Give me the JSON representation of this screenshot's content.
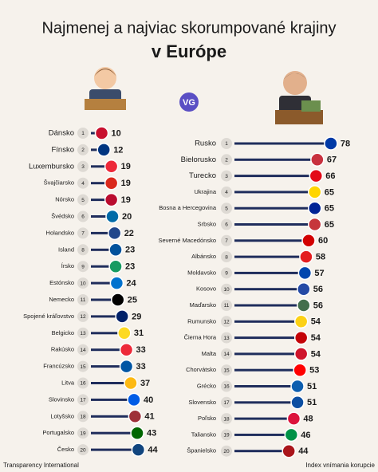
{
  "header": {
    "title_lines": [
      "Najmenej a najviac skorumpované krajiny",
      "v Európe"
    ],
    "logo": "VG"
  },
  "footer": {
    "left": "Transparency International",
    "right": "Index vnímania korupcie"
  },
  "chart_data": [
    {
      "type": "bar",
      "categories": [
        "Dánsko",
        "Fínsko",
        "Luxembursko",
        "Švajčiarsko",
        "Nórsko",
        "Švédsko",
        "Holandsko",
        "Island",
        "Írsko",
        "Estónsko",
        "Nemecko",
        "Spojené kráľovstvo",
        "Belgicko",
        "Rakúsko",
        "Francúzsko",
        "Litva",
        "Slovinsko",
        "Lotyšsko",
        "Portugalsko",
        "Česko"
      ],
      "ranks": [
        1,
        2,
        3,
        4,
        5,
        6,
        7,
        8,
        9,
        10,
        11,
        12,
        13,
        14,
        15,
        16,
        17,
        18,
        19,
        20
      ],
      "values": [
        10,
        12,
        19,
        19,
        19,
        20,
        22,
        23,
        23,
        24,
        25,
        29,
        31,
        33,
        33,
        37,
        40,
        41,
        43,
        44
      ],
      "colors": [
        "#c8102e",
        "#003580",
        "#ed2939",
        "#da291c",
        "#ba0c2f",
        "#006aa7",
        "#21468b",
        "#02529c",
        "#169b62",
        "#0072ce",
        "#000000",
        "#012169",
        "#fdda24",
        "#ed2939",
        "#0055a4",
        "#fdb913",
        "#005ce6",
        "#9e3039",
        "#006600",
        "#11457e"
      ]
    },
    {
      "type": "bar",
      "categories": [
        "Rusko",
        "Bielorusko",
        "Turecko",
        "Ukrajina",
        "Bosna a Hercegovina",
        "Srbsko",
        "Severné Macedónsko",
        "Albánsko",
        "Moldavsko",
        "Kosovo",
        "Maďarsko",
        "Rumunsko",
        "Čierna Hora",
        "Malta",
        "Chorvátsko",
        "Grécko",
        "Slovensko",
        "Poľsko",
        "Taliansko",
        "Španielsko"
      ],
      "ranks": [
        1,
        2,
        3,
        4,
        5,
        6,
        7,
        8,
        9,
        10,
        11,
        12,
        13,
        14,
        15,
        16,
        17,
        18,
        19,
        20
      ],
      "values": [
        78,
        67,
        66,
        65,
        65,
        65,
        60,
        58,
        57,
        56,
        56,
        54,
        54,
        54,
        53,
        51,
        51,
        48,
        46,
        44
      ],
      "colors": [
        "#0039a6",
        "#c8313e",
        "#e30a17",
        "#ffd500",
        "#002395",
        "#c6363c",
        "#d20000",
        "#e41e20",
        "#0046ae",
        "#244aa5",
        "#436f4d",
        "#fcd116",
        "#c40308",
        "#cf142b",
        "#ff0000",
        "#0d5eaf",
        "#0b4ea2",
        "#dc143c",
        "#009246",
        "#aa151b"
      ]
    }
  ]
}
